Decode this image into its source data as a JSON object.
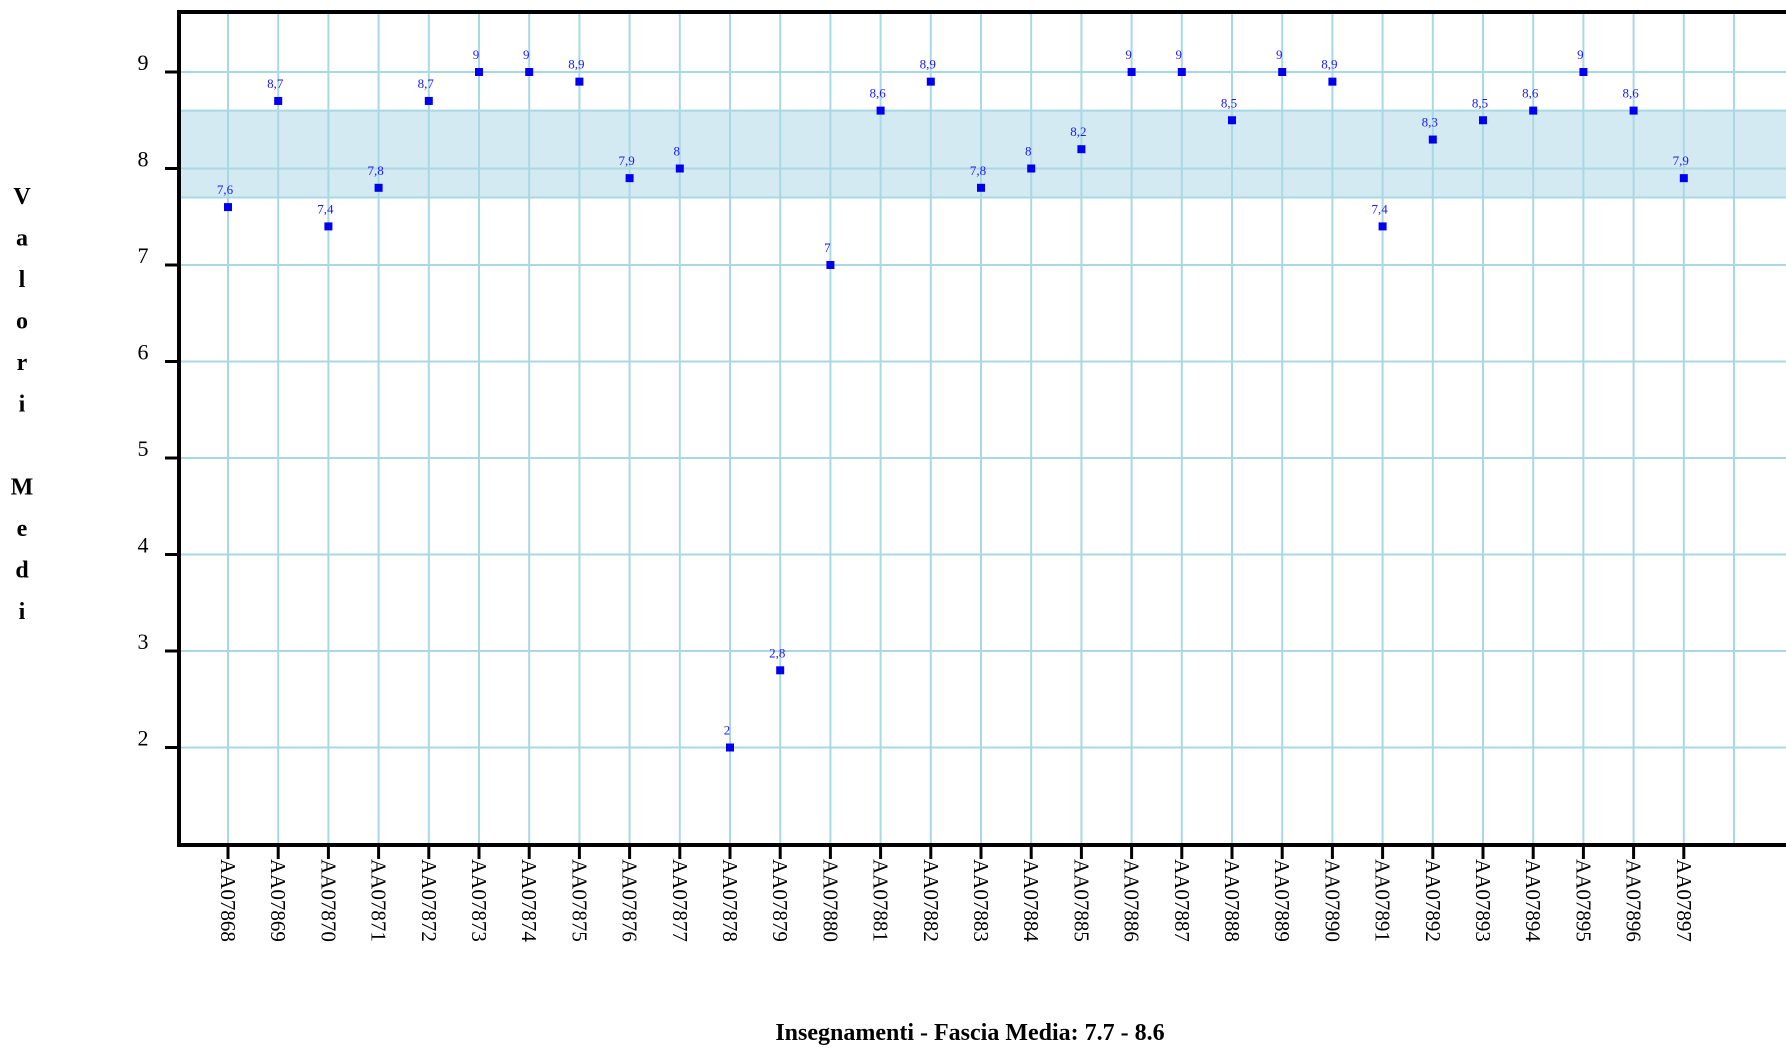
{
  "chart_data": {
    "type": "scatter",
    "xlabel": "Insegnamenti - Fascia Media: 7.7 - 8.6",
    "ylabel": "Valori Medi",
    "categories": [
      "AA07868",
      "AA07869",
      "AA07870",
      "AA07871",
      "AA07872",
      "AA07873",
      "AA07874",
      "AA07875",
      "AA07876",
      "AA07877",
      "AA07878",
      "AA07879",
      "AA07880",
      "AA07881",
      "AA07882",
      "AA07883",
      "AA07884",
      "AA07885",
      "AA07886",
      "AA07887",
      "AA07888",
      "AA07889",
      "AA07890",
      "AA07891",
      "AA07892",
      "AA07893",
      "AA07894",
      "AA07895",
      "AA07896",
      "AA07897"
    ],
    "values": [
      7.6,
      8.7,
      7.4,
      7.8,
      8.7,
      9,
      9,
      8.9,
      7.9,
      8,
      2,
      2.8,
      7,
      8.6,
      8.9,
      7.8,
      8,
      8.2,
      9,
      9,
      8.5,
      9,
      8.9,
      7.4,
      8.3,
      8.5,
      8.6,
      9,
      8.6,
      7.9
    ],
    "value_labels": [
      "7,6",
      "8,7",
      "7,4",
      "7,8",
      "8,7",
      "9",
      "9",
      "8,9",
      "7,9",
      "8",
      "2",
      "2,8",
      "7",
      "8,6",
      "8,9",
      "7,8",
      "8",
      "8,2",
      "9",
      "9",
      "8,5",
      "9",
      "8,9",
      "7,4",
      "8,3",
      "8,5",
      "8,6",
      "9",
      "8,6",
      "7,9"
    ],
    "yticks": [
      "2",
      "3",
      "4",
      "5",
      "6",
      "7",
      "8",
      "9"
    ],
    "ylim": [
      1,
      9.6
    ],
    "band": [
      7.7,
      8.6
    ],
    "grid": true,
    "colors": {
      "marker": "#0000ee",
      "label": "#1a1aff",
      "grid": "#a8d8e4",
      "band": "#d4eaf2",
      "axis": "#000000"
    }
  }
}
